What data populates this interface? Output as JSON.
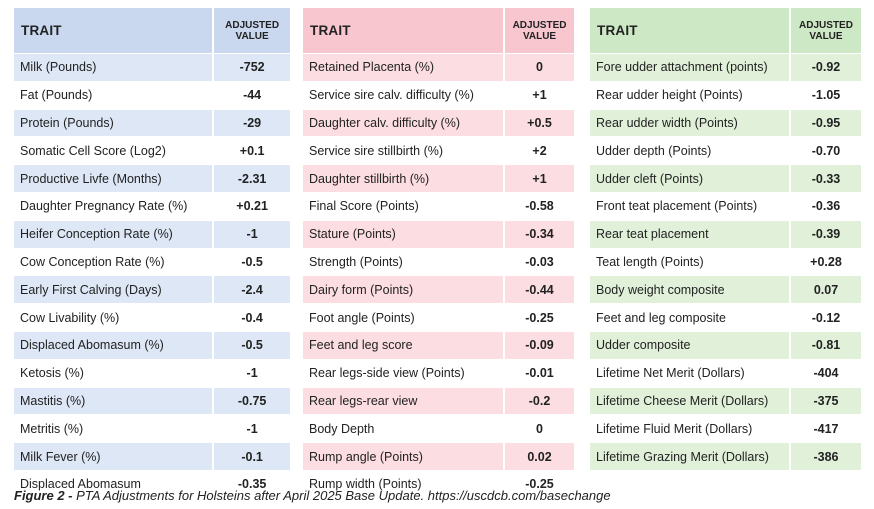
{
  "header": {
    "trait": "TRAIT",
    "adjusted": "ADJUSTED",
    "value": "VALUE"
  },
  "tables": [
    {
      "rows": [
        {
          "trait": "Milk (Pounds)",
          "value": "-752"
        },
        {
          "trait": "Fat (Pounds)",
          "value": "-44"
        },
        {
          "trait": "Protein (Pounds)",
          "value": "-29"
        },
        {
          "trait": "Somatic Cell Score (Log2)",
          "value": "+0.1"
        },
        {
          "trait": "Productive Livfe (Months)",
          "value": "-2.31"
        },
        {
          "trait": "Daughter Pregnancy Rate (%)",
          "value": "+0.21"
        },
        {
          "trait": "Heifer Conception Rate (%)",
          "value": "-1"
        },
        {
          "trait": "Cow Conception Rate (%)",
          "value": "-0.5"
        },
        {
          "trait": "Early First Calving (Days)",
          "value": "-2.4"
        },
        {
          "trait": "Cow Livability (%)",
          "value": "-0.4"
        },
        {
          "trait": "Displaced Abomasum (%)",
          "value": "-0.5"
        },
        {
          "trait": "Ketosis (%)",
          "value": "-1"
        },
        {
          "trait": "Mastitis (%)",
          "value": "-0.75"
        },
        {
          "trait": "Metritis (%)",
          "value": "-1"
        },
        {
          "trait": "Milk Fever (%)",
          "value": "-0.1"
        },
        {
          "trait": "Displaced Abomasum",
          "value": "-0.35"
        }
      ]
    },
    {
      "rows": [
        {
          "trait": "Retained Placenta (%)",
          "value": "0"
        },
        {
          "trait": "Service sire calv. difficulty (%)",
          "value": "+1"
        },
        {
          "trait": "Daughter calv. difficulty (%)",
          "value": "+0.5"
        },
        {
          "trait": "Service sire stillbirth (%)",
          "value": "+2"
        },
        {
          "trait": "Daughter stillbirth (%)",
          "value": "+1"
        },
        {
          "trait": "Final Score (Points)",
          "value": "-0.58"
        },
        {
          "trait": "Stature (Points)",
          "value": "-0.34"
        },
        {
          "trait": "Strength (Points)",
          "value": "-0.03"
        },
        {
          "trait": "Dairy form (Points)",
          "value": "-0.44"
        },
        {
          "trait": "Foot angle (Points)",
          "value": "-0.25"
        },
        {
          "trait": "Feet and leg score",
          "value": "-0.09"
        },
        {
          "trait": "Rear legs-side view (Points)",
          "value": "-0.01"
        },
        {
          "trait": "Rear legs-rear view",
          "value": "-0.2"
        },
        {
          "trait": "Body Depth",
          "value": "0"
        },
        {
          "trait": "Rump angle (Points)",
          "value": "0.02"
        },
        {
          "trait": "Rump width (Points)",
          "value": "-0.25"
        }
      ]
    },
    {
      "rows": [
        {
          "trait": "Fore udder attachment (points)",
          "value": "-0.92"
        },
        {
          "trait": "Rear udder height (Points)",
          "value": "-1.05"
        },
        {
          "trait": "Rear udder width (Points)",
          "value": "-0.95"
        },
        {
          "trait": "Udder depth (Points)",
          "value": "-0.70"
        },
        {
          "trait": "Udder cleft (Points)",
          "value": "-0.33"
        },
        {
          "trait": "Front teat placement (Points)",
          "value": "-0.36"
        },
        {
          "trait": "Rear teat placement",
          "value": "-0.39"
        },
        {
          "trait": "Teat length (Points)",
          "value": "+0.28"
        },
        {
          "trait": "Body weight composite",
          "value": "0.07"
        },
        {
          "trait": "Feet and leg composite",
          "value": "-0.12"
        },
        {
          "trait": "Udder composite",
          "value": "-0.81"
        },
        {
          "trait": "Lifetime Net Merit (Dollars)",
          "value": "-404"
        },
        {
          "trait": "Lifetime Cheese Merit (Dollars)",
          "value": "-375"
        },
        {
          "trait": "Lifetime Fluid Merit (Dollars)",
          "value": "-417"
        },
        {
          "trait": "Lifetime Grazing Merit (Dollars)",
          "value": "-386"
        }
      ]
    }
  ],
  "caption": {
    "label": "Figure 2 -",
    "text": " PTA Adjustments for Holsteins after April 2025 Base Update. https://uscdcb.com/basechange"
  }
}
